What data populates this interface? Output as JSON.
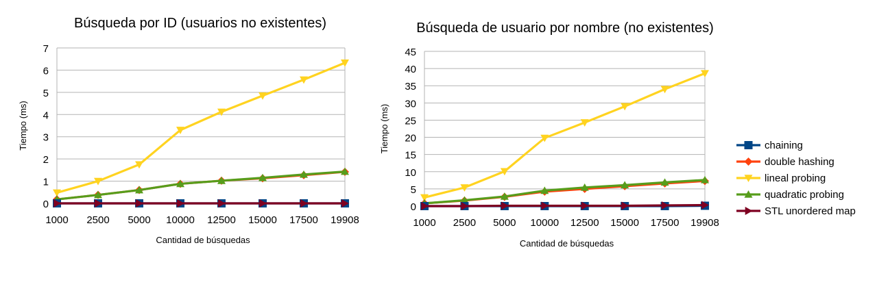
{
  "chart_data": [
    {
      "type": "line",
      "title": "Búsqueda por ID (usuarios no existentes)",
      "xlabel": "Cantidad de búsquedas",
      "ylabel": "Tiempo (ms)",
      "categories": [
        "1000",
        "2500",
        "5000",
        "10000",
        "12500",
        "15000",
        "17500",
        "19908"
      ],
      "ylim": [
        0,
        7
      ],
      "yticks": [
        "0",
        "1",
        "2",
        "3",
        "4",
        "5",
        "6",
        "7"
      ],
      "grid": true,
      "series": [
        {
          "name": "chaining",
          "values": [
            0.0,
            0.0,
            0.0,
            0.0,
            0.0,
            0.0,
            0.0,
            0.0
          ]
        },
        {
          "name": "double hashing",
          "values": [
            0.18,
            0.38,
            0.6,
            0.88,
            1.02,
            1.13,
            1.27,
            1.42
          ]
        },
        {
          "name": "lineal probing",
          "values": [
            0.48,
            1.0,
            1.75,
            3.3,
            4.12,
            4.85,
            5.57,
            6.33
          ]
        },
        {
          "name": "quadratic probing",
          "values": [
            0.18,
            0.38,
            0.6,
            0.88,
            1.02,
            1.15,
            1.3,
            1.43
          ]
        },
        {
          "name": "STL unordered map",
          "values": [
            0.0,
            0.0,
            0.0,
            0.0,
            0.0,
            0.0,
            0.0,
            0.0
          ]
        }
      ]
    },
    {
      "type": "line",
      "title": "Búsqueda de usuario por nombre (no existentes)",
      "xlabel": "Cantidad de búsquedas",
      "ylabel": "Tiempo (ms)",
      "categories": [
        "1000",
        "2500",
        "5000",
        "10000",
        "12500",
        "15000",
        "17500",
        "19908"
      ],
      "ylim": [
        0,
        45
      ],
      "yticks": [
        "0",
        "5",
        "10",
        "15",
        "20",
        "25",
        "30",
        "35",
        "40",
        "45"
      ],
      "grid": true,
      "series": [
        {
          "name": "chaining",
          "values": [
            0.0,
            0.0,
            0.0,
            0.0,
            0.0,
            0.0,
            0.0,
            0.1
          ]
        },
        {
          "name": "double hashing",
          "values": [
            0.8,
            1.6,
            2.7,
            4.2,
            5.0,
            5.8,
            6.6,
            7.3
          ]
        },
        {
          "name": "lineal probing",
          "values": [
            2.5,
            5.4,
            10.1,
            19.8,
            24.3,
            29.0,
            34.0,
            38.6
          ]
        },
        {
          "name": "quadratic probing",
          "values": [
            0.8,
            1.7,
            2.8,
            4.5,
            5.4,
            6.1,
            6.9,
            7.6
          ]
        },
        {
          "name": "STL unordered map",
          "values": [
            0.0,
            0.0,
            0.1,
            0.1,
            0.1,
            0.1,
            0.2,
            0.3
          ]
        }
      ]
    }
  ],
  "legend": {
    "placement": "right",
    "items": [
      {
        "name": "chaining",
        "color": "#004586",
        "marker": "square"
      },
      {
        "name": "double hashing",
        "color": "#ff420e",
        "marker": "diamond"
      },
      {
        "name": "lineal probing",
        "color": "#ffd320",
        "marker": "triangle-down"
      },
      {
        "name": "quadratic probing",
        "color": "#579d1c",
        "marker": "triangle-up"
      },
      {
        "name": "STL unordered map",
        "color": "#7e0021",
        "marker": "triangle-right"
      }
    ]
  }
}
